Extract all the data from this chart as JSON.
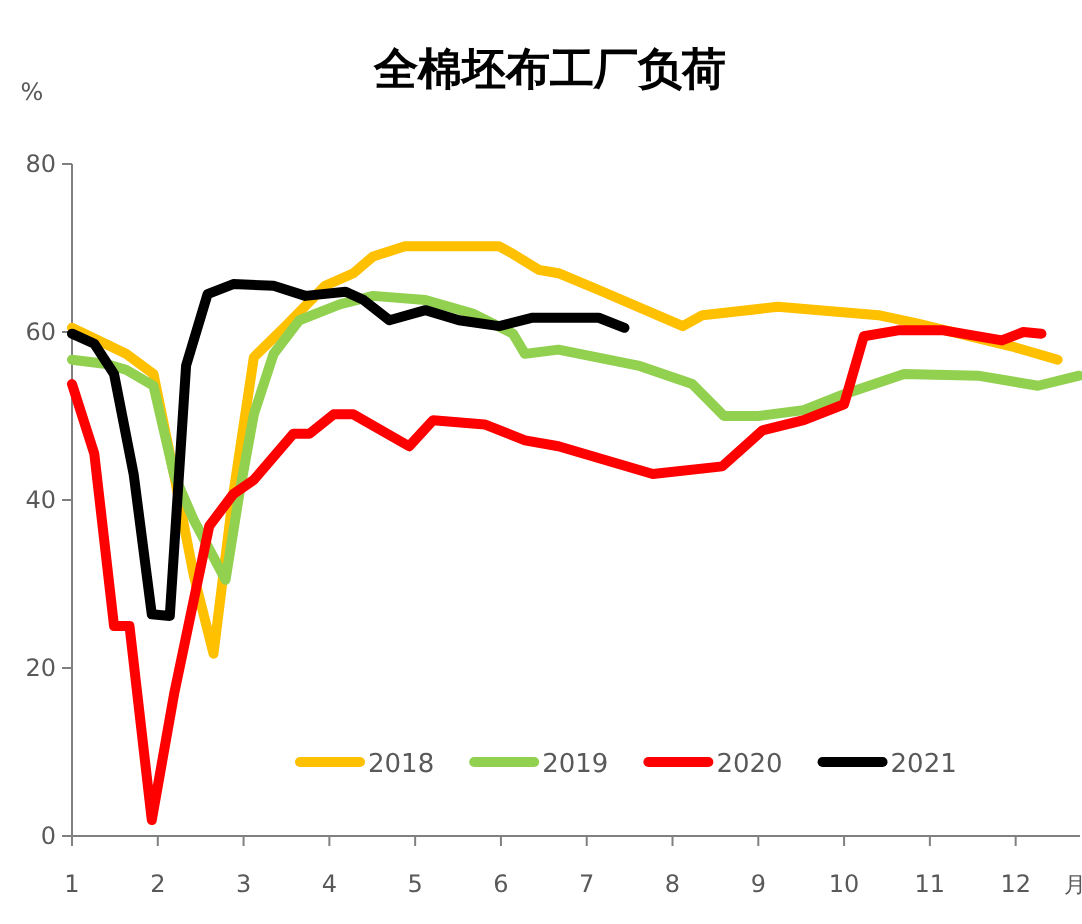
{
  "chart_data": {
    "type": "line",
    "title": "全棉坯布工厂负荷",
    "ylabel": "%",
    "xlabel": "月",
    "xlim": [
      1,
      12.75
    ],
    "xticks": [
      1,
      2,
      3,
      4,
      5,
      6,
      7,
      8,
      9,
      10,
      11,
      12
    ],
    "ylim": [
      0,
      80
    ],
    "yticks": [
      0,
      20,
      40,
      60,
      80
    ],
    "grid": false,
    "legend": "bottom right",
    "line_style": "solid",
    "marker": "none",
    "series": [
      {
        "name": "2018",
        "color": "#ffc000",
        "x": [
          1,
          1.63,
          1.95,
          2.19,
          2.42,
          2.65,
          2.88,
          3.12,
          3.49,
          3.95,
          4.28,
          4.51,
          4.88,
          5.98,
          6.14,
          6.44,
          6.67,
          7.14,
          8.12,
          8.35,
          9.23,
          10.4,
          10.86,
          11.95,
          12.49
        ],
        "values": [
          60.5,
          57.4,
          55,
          43,
          31,
          21.7,
          40.7,
          57,
          60.7,
          65.5,
          67,
          69,
          70.2,
          70.2,
          69.3,
          67.4,
          67,
          65,
          60.7,
          62,
          63,
          62,
          61,
          58.3,
          56.7
        ]
      },
      {
        "name": "2019",
        "color": "#92d050",
        "x": [
          1,
          1.4,
          1.63,
          1.95,
          2.19,
          2.42,
          2.79,
          2.95,
          3.12,
          3.35,
          3.65,
          4.12,
          4.51,
          5.12,
          5.67,
          6.14,
          6.28,
          6.67,
          7.6,
          8.23,
          8.6,
          9,
          9.53,
          10,
          10.7,
          11.56,
          12.26,
          12.74
        ],
        "values": [
          56.7,
          56.2,
          55.5,
          53.6,
          43,
          37.6,
          30.5,
          40.7,
          50.2,
          57.4,
          61.4,
          63.3,
          64.3,
          63.8,
          62.2,
          59.8,
          57.4,
          57.9,
          56,
          53.8,
          50,
          50,
          50.7,
          52.6,
          55,
          54.8,
          53.6,
          54.8
        ]
      },
      {
        "name": "2020",
        "color": "#ff0000",
        "x": [
          1,
          1.26,
          1.49,
          1.67,
          1.93,
          2.19,
          2.6,
          2.88,
          3.12,
          3.58,
          3.77,
          4.05,
          4.28,
          4.93,
          5.21,
          5.81,
          6.28,
          6.67,
          7.77,
          8.58,
          9.05,
          9.53,
          10,
          10.23,
          10.63,
          11.16,
          11.84,
          12.09,
          12.3
        ],
        "values": [
          53.8,
          45.5,
          25,
          25,
          1.9,
          16.9,
          36.9,
          40.7,
          42.4,
          47.9,
          47.9,
          50.2,
          50.2,
          46.4,
          49.5,
          49,
          47.1,
          46.4,
          43.1,
          44,
          48.3,
          49.5,
          51.4,
          59.5,
          60.2,
          60.2,
          59,
          60,
          59.8
        ]
      },
      {
        "name": "2021",
        "color": "#000000",
        "x": [
          1,
          1.26,
          1.49,
          1.72,
          1.93,
          2.14,
          2.33,
          2.58,
          2.88,
          3.35,
          3.72,
          4.19,
          4.4,
          4.7,
          5.12,
          5.51,
          5.98,
          6.37,
          7.14,
          7.44
        ],
        "values": [
          59.8,
          58.6,
          55,
          43,
          26.4,
          26.2,
          56,
          64.5,
          65.7,
          65.5,
          64.3,
          64.8,
          63.8,
          61.4,
          62.6,
          61.4,
          60.7,
          61.7,
          61.7,
          60.5
        ]
      }
    ]
  }
}
